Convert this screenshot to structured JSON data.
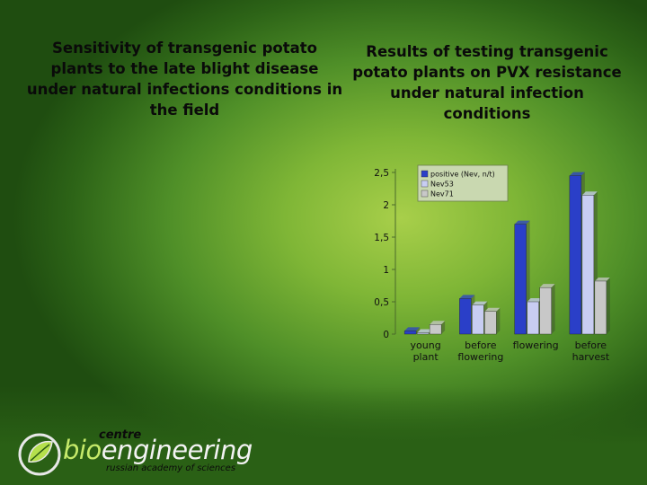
{
  "left_title": "Sensitivity of transgenic potato plants to the late blight disease under natural infections conditions in the field",
  "right_title": "Results of testing transgenic potato plants on PVX resistance under natural infection conditions",
  "chart_data": {
    "type": "bar",
    "categories": [
      [
        "young",
        "plant"
      ],
      [
        "before",
        "flowering"
      ],
      [
        "flowering"
      ],
      [
        "before",
        "harvest"
      ]
    ],
    "series": [
      {
        "name": "positive (Nev, n/t)",
        "color": "#2a3fc8",
        "values": [
          0.05,
          0.55,
          1.7,
          2.45
        ]
      },
      {
        "name": "Nev53",
        "color": "#c8cdf2",
        "values": [
          0.02,
          0.45,
          0.5,
          2.15
        ]
      },
      {
        "name": "Nev71",
        "color": "#c8c8c8",
        "values": [
          0.15,
          0.35,
          0.72,
          0.82
        ]
      }
    ],
    "y_ticks": [
      "0",
      "0,5",
      "1",
      "1,5",
      "2",
      "2,5"
    ],
    "ylim": [
      0,
      2.5
    ],
    "legend_position": "top-left",
    "grid": false
  },
  "logo": {
    "centre": "centre",
    "bio": "bio",
    "engineering": "engineering",
    "subtitle": "russian academy of sciences",
    "icon": "leaf-circle-icon"
  }
}
